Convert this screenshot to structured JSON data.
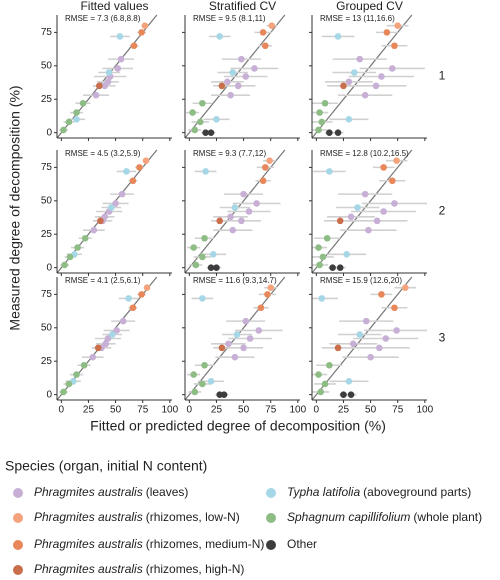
{
  "facets": {
    "columns": [
      "Fitted values",
      "Stratified CV",
      "Grouped CV"
    ],
    "rows": [
      "1",
      "2",
      "3"
    ],
    "x_label": "Fitted or predicted degree of decomposition (%)",
    "y_label": "Measured degree of decomposition (%)"
  },
  "legend": {
    "title": "Species (organ, initial N content)",
    "items": [
      {
        "name": "Phragmites australis",
        "detail": "(leaves)",
        "italic": true,
        "color": "#c8afd6"
      },
      {
        "name": "Phragmites australis",
        "detail": "(rhizomes, low-N)",
        "italic": true,
        "color": "#f5a37c"
      },
      {
        "name": "Phragmites australis",
        "detail": "(rhizomes, medium-N)",
        "italic": true,
        "color": "#e8875a"
      },
      {
        "name": "Phragmites australis",
        "detail": "(rhizomes, high-N)",
        "italic": true,
        "color": "#c96f4c"
      },
      {
        "name": "Typha latifolia",
        "detail": "(aboveground parts)",
        "italic": true,
        "color": "#a6d7e6"
      },
      {
        "name": "Sphagnum capillifolium",
        "detail": "(whole plant)",
        "italic": true,
        "color": "#8dbd84"
      },
      {
        "name": "Other",
        "italic": false,
        "color": "#3d3d3d"
      }
    ]
  },
  "chart_data": [
    {
      "type": "scatter",
      "column": 0,
      "row": 0,
      "annotation": "RMSE = 7.3 (6.8,8.8)",
      "xlim": [
        -4,
        102
      ],
      "ylim": [
        -4,
        88
      ],
      "xticks": [
        0,
        25,
        50,
        75,
        100
      ],
      "yticks": [
        0,
        25,
        50,
        75
      ],
      "series": [
        {
          "x": [
            32,
            40,
            45,
            52,
            55,
            43
          ],
          "values": [
            28,
            35,
            42,
            48,
            55,
            38
          ],
          "xerr": [
            12,
            10,
            15,
            14,
            12,
            10
          ]
        },
        {
          "x": [
            77
          ],
          "values": [
            80
          ],
          "xerr": [
            3
          ]
        },
        {
          "x": [
            67,
            74
          ],
          "values": [
            65,
            75
          ],
          "xerr": [
            4,
            4
          ]
        },
        {
          "x": [
            35
          ],
          "values": [
            35
          ],
          "xerr": [
            6
          ]
        },
        {
          "x": [
            14,
            44,
            54
          ],
          "values": [
            10,
            45,
            72
          ],
          "xerr": [
            8,
            10,
            9
          ]
        },
        {
          "x": [
            2,
            7,
            14,
            20
          ],
          "values": [
            2,
            8,
            15,
            22
          ],
          "xerr": [
            4,
            5,
            6,
            7
          ]
        },
        {
          "x": [],
          "values": [],
          "xerr": []
        }
      ]
    },
    {
      "type": "scatter",
      "column": 1,
      "row": 0,
      "annotation": "RMSE = 9.5 (8.1,11)",
      "xlim": [
        -4,
        102
      ],
      "ylim": [
        -4,
        88
      ],
      "xticks": [
        0,
        25,
        50,
        75,
        100
      ],
      "yticks": [
        0,
        25,
        50,
        75
      ],
      "series": [
        {
          "x": [
            38,
            45,
            52,
            60,
            48,
            35
          ],
          "values": [
            28,
            35,
            42,
            48,
            55,
            38
          ],
          "xerr": [
            18,
            16,
            20,
            22,
            18,
            15
          ]
        },
        {
          "x": [
            76
          ],
          "values": [
            80
          ],
          "xerr": [
            5
          ]
        },
        {
          "x": [
            70,
            68
          ],
          "values": [
            65,
            75
          ],
          "xerr": [
            6,
            8
          ]
        },
        {
          "x": [
            30
          ],
          "values": [
            35
          ],
          "xerr": [
            8
          ]
        },
        {
          "x": [
            25,
            40,
            28
          ],
          "values": [
            10,
            45,
            72
          ],
          "xerr": [
            12,
            14,
            10
          ]
        },
        {
          "x": [
            5,
            10,
            3,
            12
          ],
          "values": [
            2,
            8,
            15,
            22
          ],
          "xerr": [
            6,
            8,
            6,
            9
          ]
        },
        {
          "x": [
            15,
            20
          ],
          "values": [
            0,
            0
          ],
          "xerr": [
            4,
            4
          ]
        }
      ]
    },
    {
      "type": "scatter",
      "column": 2,
      "row": 0,
      "annotation": "RMSE = 13 (11,16.6)",
      "xlim": [
        -4,
        102
      ],
      "ylim": [
        -4,
        88
      ],
      "xticks": [
        0,
        25,
        50,
        75,
        100
      ],
      "yticks": [
        0,
        25,
        50,
        75
      ],
      "series": [
        {
          "x": [
            45,
            55,
            60,
            70,
            40,
            30
          ],
          "values": [
            28,
            35,
            42,
            48,
            55,
            38
          ],
          "xerr": [
            25,
            28,
            30,
            30,
            25,
            22
          ]
        },
        {
          "x": [
            75
          ],
          "values": [
            80
          ],
          "xerr": [
            10
          ]
        },
        {
          "x": [
            72,
            65
          ],
          "values": [
            65,
            75
          ],
          "xerr": [
            12,
            10
          ]
        },
        {
          "x": [
            25
          ],
          "values": [
            35
          ],
          "xerr": [
            15
          ]
        },
        {
          "x": [
            30,
            35,
            20
          ],
          "values": [
            10,
            45,
            72
          ],
          "xerr": [
            18,
            20,
            15
          ]
        },
        {
          "x": [
            2,
            5,
            3,
            8
          ],
          "values": [
            2,
            8,
            15,
            22
          ],
          "xerr": [
            8,
            10,
            8,
            12
          ]
        },
        {
          "x": [
            12,
            20
          ],
          "values": [
            0,
            0
          ],
          "xerr": [
            4,
            5
          ]
        }
      ]
    },
    {
      "type": "scatter",
      "column": 0,
      "row": 1,
      "annotation": "RMSE = 4.5 (3.2,5.9)",
      "xlim": [
        -4,
        102
      ],
      "ylim": [
        -4,
        88
      ],
      "xticks": [
        0,
        25,
        50,
        75,
        100
      ],
      "yticks": [
        0,
        25,
        50,
        75
      ],
      "series": [
        {
          "x": [
            30,
            38,
            44,
            50,
            56,
            40
          ],
          "values": [
            28,
            35,
            42,
            48,
            55,
            38
          ],
          "xerr": [
            10,
            9,
            12,
            12,
            11,
            9
          ]
        },
        {
          "x": [
            78
          ],
          "values": [
            80
          ],
          "xerr": [
            3
          ]
        },
        {
          "x": [
            66,
            72
          ],
          "values": [
            65,
            75
          ],
          "xerr": [
            4,
            4
          ]
        },
        {
          "x": [
            36
          ],
          "values": [
            35
          ],
          "xerr": [
            5
          ]
        },
        {
          "x": [
            12,
            46,
            60
          ],
          "values": [
            10,
            45,
            72
          ],
          "xerr": [
            7,
            9,
            9
          ]
        },
        {
          "x": [
            3,
            8,
            15,
            22
          ],
          "values": [
            2,
            8,
            15,
            22
          ],
          "xerr": [
            4,
            5,
            6,
            6
          ]
        },
        {
          "x": [],
          "values": [],
          "xerr": []
        }
      ]
    },
    {
      "type": "scatter",
      "column": 1,
      "row": 1,
      "annotation": "RMSE = 9.3 (7.7,12)",
      "xlim": [
        -4,
        102
      ],
      "ylim": [
        -4,
        88
      ],
      "xticks": [
        0,
        25,
        50,
        75,
        100
      ],
      "yticks": [
        0,
        25,
        50,
        75
      ],
      "series": [
        {
          "x": [
            40,
            48,
            55,
            62,
            50,
            38
          ],
          "values": [
            28,
            35,
            42,
            48,
            55,
            38
          ],
          "xerr": [
            18,
            18,
            20,
            22,
            18,
            16
          ]
        },
        {
          "x": [
            74
          ],
          "values": [
            80
          ],
          "xerr": [
            6
          ]
        },
        {
          "x": [
            68,
            70
          ],
          "values": [
            65,
            75
          ],
          "xerr": [
            7,
            8
          ]
        },
        {
          "x": [
            28
          ],
          "values": [
            35
          ],
          "xerr": [
            8
          ]
        },
        {
          "x": [
            22,
            42,
            15
          ],
          "values": [
            10,
            45,
            72
          ],
          "xerr": [
            12,
            14,
            10
          ]
        },
        {
          "x": [
            6,
            12,
            4,
            14
          ],
          "values": [
            2,
            8,
            15,
            22
          ],
          "xerr": [
            6,
            8,
            6,
            9
          ]
        },
        {
          "x": [
            20,
            25
          ],
          "values": [
            0,
            0
          ],
          "xerr": [
            4,
            4
          ]
        }
      ]
    },
    {
      "type": "scatter",
      "column": 2,
      "row": 1,
      "annotation": "RMSE = 12.8 (10.2,16.5)",
      "xlim": [
        -4,
        102
      ],
      "ylim": [
        -4,
        88
      ],
      "xticks": [
        0,
        25,
        50,
        75,
        100
      ],
      "yticks": [
        0,
        25,
        50,
        75
      ],
      "series": [
        {
          "x": [
            48,
            56,
            62,
            72,
            45,
            32
          ],
          "values": [
            28,
            35,
            42,
            48,
            55,
            38
          ],
          "xerr": [
            26,
            28,
            30,
            30,
            25,
            22
          ]
        },
        {
          "x": [
            74
          ],
          "values": [
            80
          ],
          "xerr": [
            10
          ]
        },
        {
          "x": [
            70,
            62
          ],
          "values": [
            65,
            75
          ],
          "xerr": [
            12,
            10
          ]
        },
        {
          "x": [
            22
          ],
          "values": [
            35
          ],
          "xerr": [
            15
          ]
        },
        {
          "x": [
            28,
            38,
            12
          ],
          "values": [
            10,
            45,
            72
          ],
          "xerr": [
            18,
            20,
            15
          ]
        },
        {
          "x": [
            3,
            6,
            2,
            10
          ],
          "values": [
            2,
            8,
            15,
            22
          ],
          "xerr": [
            8,
            10,
            8,
            12
          ]
        },
        {
          "x": [
            15,
            22
          ],
          "values": [
            0,
            0
          ],
          "xerr": [
            4,
            5
          ]
        }
      ]
    },
    {
      "type": "scatter",
      "column": 0,
      "row": 2,
      "annotation": "RMSE = 4.1 (2.5,6.1)",
      "xlim": [
        -4,
        102
      ],
      "ylim": [
        -4,
        88
      ],
      "xticks": [
        0,
        25,
        50,
        75,
        100
      ],
      "yticks": [
        0,
        25,
        50,
        75
      ],
      "series": [
        {
          "x": [
            29,
            37,
            43,
            51,
            57,
            41
          ],
          "values": [
            28,
            35,
            42,
            48,
            55,
            38
          ],
          "xerr": [
            10,
            9,
            12,
            12,
            11,
            9
          ]
        },
        {
          "x": [
            79
          ],
          "values": [
            80
          ],
          "xerr": [
            3
          ]
        },
        {
          "x": [
            66,
            74
          ],
          "values": [
            65,
            75
          ],
          "xerr": [
            4,
            4
          ]
        },
        {
          "x": [
            34
          ],
          "values": [
            35
          ],
          "xerr": [
            5
          ]
        },
        {
          "x": [
            11,
            47,
            62
          ],
          "values": [
            10,
            45,
            72
          ],
          "xerr": [
            7,
            9,
            9
          ]
        },
        {
          "x": [
            2,
            7,
            14,
            21
          ],
          "values": [
            2,
            8,
            15,
            22
          ],
          "xerr": [
            4,
            5,
            6,
            6
          ]
        },
        {
          "x": [],
          "values": [],
          "xerr": []
        }
      ]
    },
    {
      "type": "scatter",
      "column": 1,
      "row": 2,
      "annotation": "RMSE = 11.6 (9.3,14.7)",
      "xlim": [
        -4,
        102
      ],
      "ylim": [
        -4,
        88
      ],
      "xticks": [
        0,
        25,
        50,
        75,
        100
      ],
      "yticks": [
        0,
        25,
        50,
        75
      ],
      "series": [
        {
          "x": [
            42,
            50,
            56,
            64,
            52,
            36
          ],
          "values": [
            28,
            35,
            42,
            48,
            55,
            38
          ],
          "xerr": [
            18,
            18,
            20,
            22,
            18,
            16
          ]
        },
        {
          "x": [
            75
          ],
          "values": [
            80
          ],
          "xerr": [
            6
          ]
        },
        {
          "x": [
            66,
            72
          ],
          "values": [
            65,
            75
          ],
          "xerr": [
            7,
            8
          ]
        },
        {
          "x": [
            30
          ],
          "values": [
            35
          ],
          "xerr": [
            8
          ]
        },
        {
          "x": [
            20,
            44,
            12
          ],
          "values": [
            10,
            45,
            72
          ],
          "xerr": [
            12,
            14,
            10
          ]
        },
        {
          "x": [
            5,
            12,
            4,
            14
          ],
          "values": [
            2,
            8,
            15,
            22
          ],
          "xerr": [
            6,
            8,
            6,
            9
          ]
        },
        {
          "x": [
            28,
            32
          ],
          "values": [
            0,
            0
          ],
          "xerr": [
            4,
            4
          ]
        }
      ]
    },
    {
      "type": "scatter",
      "column": 2,
      "row": 2,
      "annotation": "RMSE = 15.9 (12.6,20)",
      "xlim": [
        -4,
        102
      ],
      "ylim": [
        -4,
        88
      ],
      "xticks": [
        0,
        25,
        50,
        75,
        100
      ],
      "yticks": [
        0,
        25,
        50,
        75
      ],
      "series": [
        {
          "x": [
            50,
            58,
            64,
            74,
            46,
            34
          ],
          "values": [
            28,
            35,
            42,
            48,
            55,
            38
          ],
          "xerr": [
            26,
            28,
            30,
            30,
            25,
            22
          ]
        },
        {
          "x": [
            82
          ],
          "values": [
            80
          ],
          "xerr": [
            10
          ]
        },
        {
          "x": [
            72,
            60
          ],
          "values": [
            65,
            75
          ],
          "xerr": [
            12,
            10
          ]
        },
        {
          "x": [
            20
          ],
          "values": [
            35
          ],
          "xerr": [
            15
          ]
        },
        {
          "x": [
            30,
            40,
            5
          ],
          "values": [
            10,
            45,
            72
          ],
          "xerr": [
            18,
            20,
            15
          ]
        },
        {
          "x": [
            4,
            8,
            2,
            12
          ],
          "values": [
            2,
            8,
            15,
            22
          ],
          "xerr": [
            8,
            10,
            8,
            12
          ]
        },
        {
          "x": [
            25,
            32
          ],
          "values": [
            0,
            0
          ],
          "xerr": [
            4,
            5
          ]
        }
      ]
    }
  ]
}
